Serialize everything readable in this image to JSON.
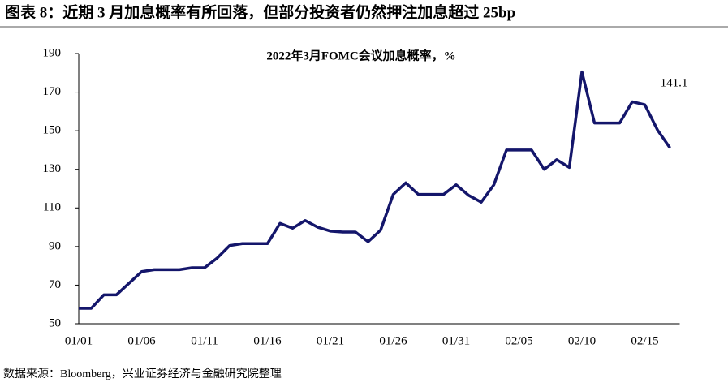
{
  "header": "图表 8：近期 3 月加息概率有所回落，但部分投资者仍然押注加息超过 25bp",
  "source": "数据来源：Bloomberg，兴业证券经济与金融研究院整理",
  "chart_data": {
    "type": "line",
    "title": "2022年3月FOMC会议加息概率，%",
    "categories": [
      "01/01",
      null,
      null,
      null,
      null,
      "01/06",
      null,
      null,
      null,
      null,
      "01/11",
      null,
      null,
      null,
      null,
      "01/16",
      null,
      null,
      null,
      null,
      "01/21",
      null,
      null,
      null,
      null,
      "01/26",
      null,
      null,
      null,
      null,
      "01/31",
      null,
      null,
      null,
      null,
      "02/05",
      null,
      null,
      null,
      null,
      "02/10",
      null,
      null,
      null,
      null,
      "02/15",
      null,
      null
    ],
    "values": [
      58,
      58,
      65,
      65,
      71,
      77,
      78,
      78,
      78,
      79,
      79,
      84,
      90.5,
      91.5,
      91.5,
      91.5,
      102,
      99.5,
      103.5,
      100,
      98,
      97.5,
      97.5,
      92.5,
      98.5,
      117,
      123,
      117,
      117,
      117,
      122,
      116.5,
      113,
      122,
      140,
      140,
      140,
      130,
      135,
      131,
      180.5,
      154,
      154,
      154,
      165,
      163.5,
      150.5,
      141.1
    ],
    "color": "#14166b",
    "ylim": [
      50,
      190
    ],
    "yticks": [
      50,
      70,
      90,
      110,
      130,
      150,
      170,
      190
    ],
    "grid": false
  }
}
